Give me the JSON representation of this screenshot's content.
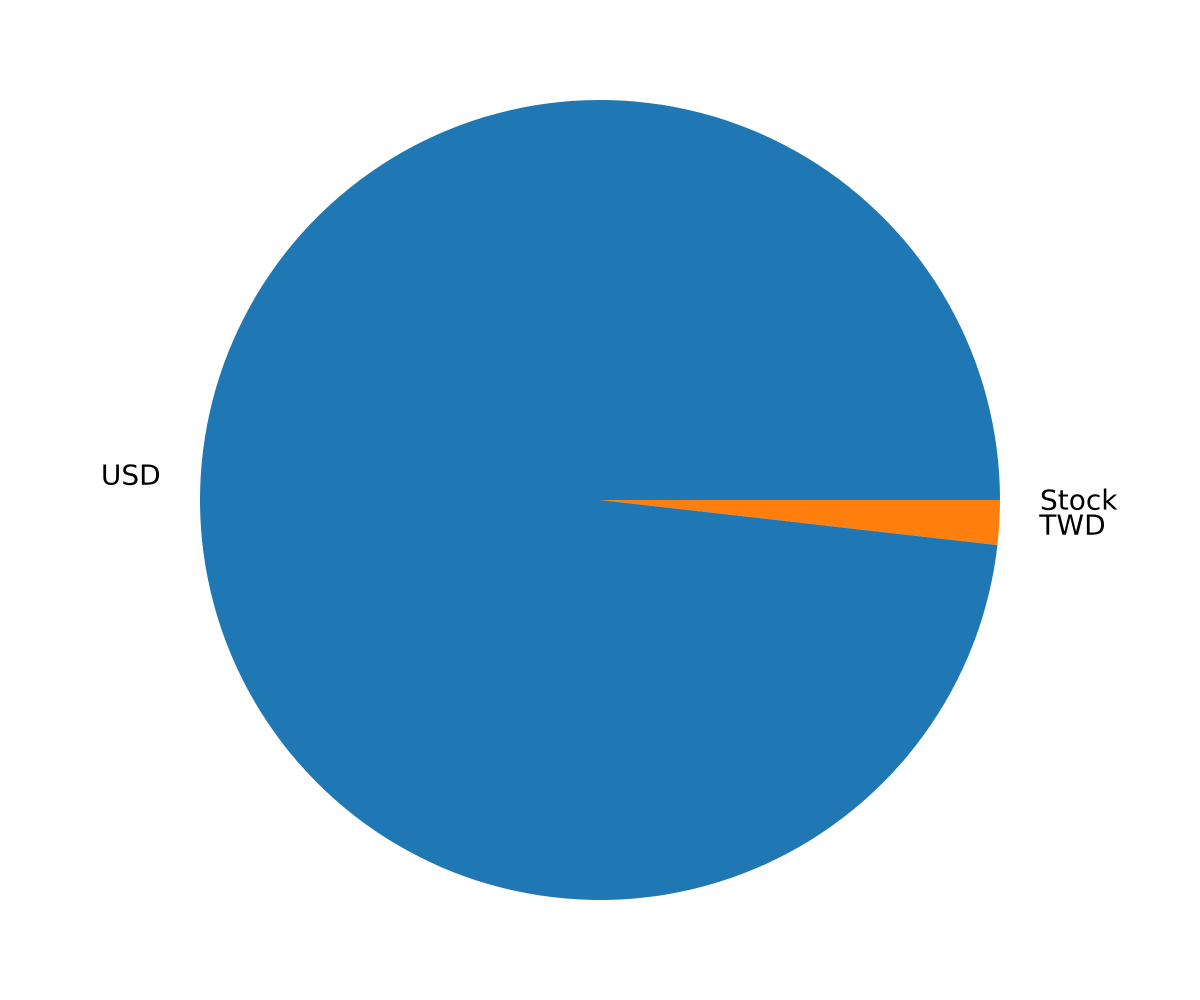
{
  "chart_data": {
    "type": "pie",
    "title": "",
    "start_angle_deg": 0,
    "direction": "clockwise",
    "slices": [
      {
        "label": "Stock",
        "value": 0.0,
        "color": "#d62728"
      },
      {
        "label": "TWD",
        "value": 1.8,
        "color": "#ff7f0e"
      },
      {
        "label": "USD",
        "value": 98.2,
        "color": "#1f77b4"
      }
    ]
  }
}
